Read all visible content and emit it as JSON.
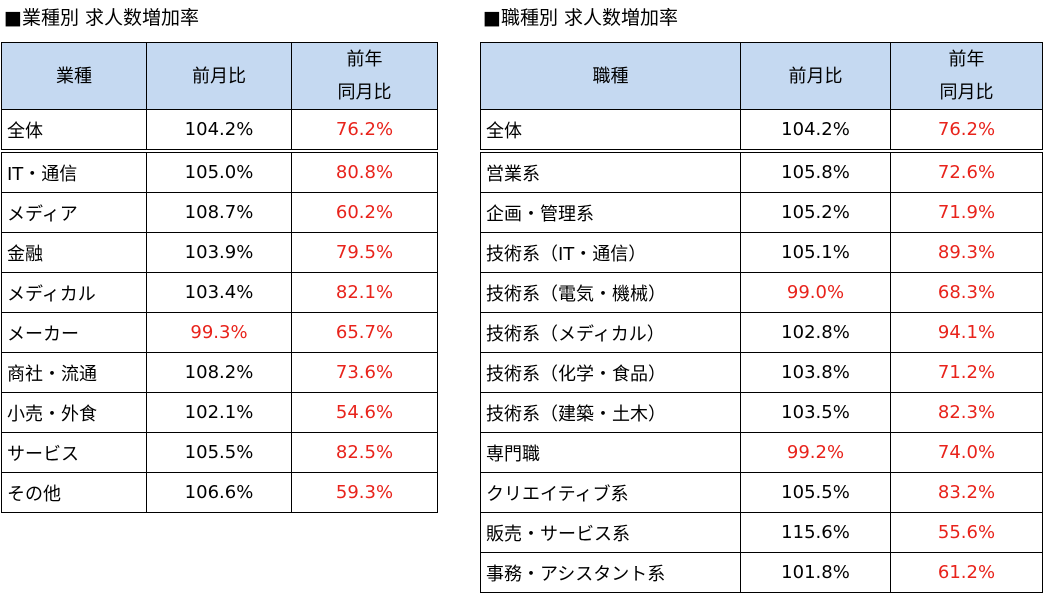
{
  "colors": {
    "header_bg": "#c5d9f1",
    "negative_text": "#e8231b",
    "text": "#000000"
  },
  "industry": {
    "title": "■業種別 求人数増加率",
    "headers": {
      "name": "業種",
      "mom": "前月比",
      "yoy_line1": "前年",
      "yoy_line2": "同月比"
    },
    "rows": [
      {
        "name": "全体",
        "mom": "104.2%",
        "yoy": "76.2%",
        "mom_red": false,
        "yoy_red": true
      },
      {
        "name": "IT・通信",
        "mom": "105.0%",
        "yoy": "80.8%",
        "mom_red": false,
        "yoy_red": true
      },
      {
        "name": "メディア",
        "mom": "108.7%",
        "yoy": "60.2%",
        "mom_red": false,
        "yoy_red": true
      },
      {
        "name": "金融",
        "mom": "103.9%",
        "yoy": "79.5%",
        "mom_red": false,
        "yoy_red": true
      },
      {
        "name": "メディカル",
        "mom": "103.4%",
        "yoy": "82.1%",
        "mom_red": false,
        "yoy_red": true
      },
      {
        "name": "メーカー",
        "mom": "99.3%",
        "yoy": "65.7%",
        "mom_red": true,
        "yoy_red": true
      },
      {
        "name": "商社・流通",
        "mom": "108.2%",
        "yoy": "73.6%",
        "mom_red": false,
        "yoy_red": true
      },
      {
        "name": "小売・外食",
        "mom": "102.1%",
        "yoy": "54.6%",
        "mom_red": false,
        "yoy_red": true
      },
      {
        "name": "サービス",
        "mom": "105.5%",
        "yoy": "82.5%",
        "mom_red": false,
        "yoy_red": true
      },
      {
        "name": "その他",
        "mom": "106.6%",
        "yoy": "59.3%",
        "mom_red": false,
        "yoy_red": true
      }
    ]
  },
  "occupation": {
    "title": "■職種別 求人数増加率",
    "headers": {
      "name": "職種",
      "mom": "前月比",
      "yoy_line1": "前年",
      "yoy_line2": "同月比"
    },
    "rows": [
      {
        "name": "全体",
        "mom": "104.2%",
        "yoy": "76.2%",
        "mom_red": false,
        "yoy_red": true
      },
      {
        "name": "営業系",
        "mom": "105.8%",
        "yoy": "72.6%",
        "mom_red": false,
        "yoy_red": true
      },
      {
        "name": "企画・管理系",
        "mom": "105.2%",
        "yoy": "71.9%",
        "mom_red": false,
        "yoy_red": true
      },
      {
        "name": "技術系（IT・通信）",
        "mom": "105.1%",
        "yoy": "89.3%",
        "mom_red": false,
        "yoy_red": true
      },
      {
        "name": "技術系（電気・機械）",
        "mom": "99.0%",
        "yoy": "68.3%",
        "mom_red": true,
        "yoy_red": true
      },
      {
        "name": "技術系（メディカル）",
        "mom": "102.8%",
        "yoy": "94.1%",
        "mom_red": false,
        "yoy_red": true
      },
      {
        "name": "技術系（化学・食品）",
        "mom": "103.8%",
        "yoy": "71.2%",
        "mom_red": false,
        "yoy_red": true
      },
      {
        "name": "技術系（建築・土木）",
        "mom": "103.5%",
        "yoy": "82.3%",
        "mom_red": false,
        "yoy_red": true
      },
      {
        "name": "専門職",
        "mom": "99.2%",
        "yoy": "74.0%",
        "mom_red": true,
        "yoy_red": true
      },
      {
        "name": "クリエイティブ系",
        "mom": "105.5%",
        "yoy": "83.2%",
        "mom_red": false,
        "yoy_red": true
      },
      {
        "name": "販売・サービス系",
        "mom": "115.6%",
        "yoy": "55.6%",
        "mom_red": false,
        "yoy_red": true
      },
      {
        "name": "事務・アシスタント系",
        "mom": "101.8%",
        "yoy": "61.2%",
        "mom_red": false,
        "yoy_red": true
      }
    ]
  }
}
